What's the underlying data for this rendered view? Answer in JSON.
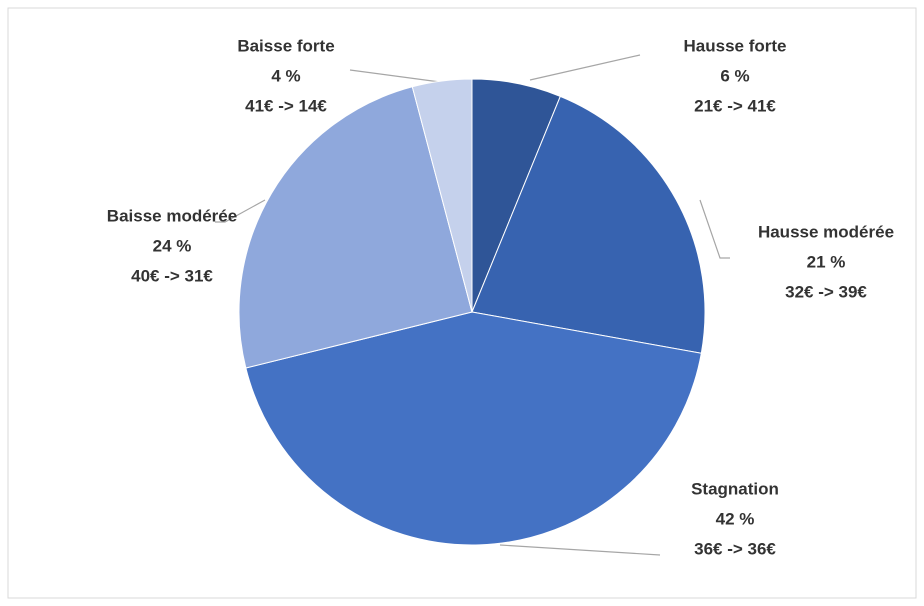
{
  "chart_data": {
    "type": "pie",
    "categories": [
      "Hausse forte",
      "Hausse modérée",
      "Stagnation",
      "Baisse modérée",
      "Baisse forte"
    ],
    "values": [
      6,
      21,
      42,
      24,
      4
    ],
    "value_labels": [
      "6 %",
      "21 %",
      "42 %",
      "24 %",
      "4 %"
    ],
    "details": [
      "21€ -> 41€",
      "32€ -> 39€",
      "36€ -> 36€",
      "40€ -> 31€",
      "41€ -> 14€"
    ],
    "colors": [
      "#2f5597",
      "#3763b0",
      "#4472c4",
      "#8fa8dc",
      "#c5d1ec"
    ]
  }
}
